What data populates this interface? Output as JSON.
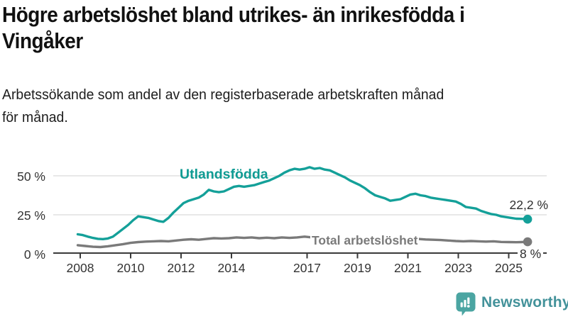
{
  "header": {
    "title_line1": "Högre arbetslöshet bland utrikes- än inrikesfödda i",
    "title_line2": "Vingåker",
    "subtitle_line1": "Arbetssökande som andel av den registerbaserade arbetskraften månad",
    "subtitle_line2": "för månad."
  },
  "chart_data": {
    "type": "line",
    "title": "Högre arbetslöshet bland utrikes- än inrikesfödda i Vingåker",
    "subtitle": "Arbetssökande som andel av den registerbaserade arbetskraften månad för månad.",
    "x_unit": "decimal year (monthly readings)",
    "x_range": [
      2007.9,
      2025.75
    ],
    "ylim": [
      0,
      60
    ],
    "grid": "horizontal gridlines at 25 and 50, dark baseline at 0",
    "legend_position": "inline labels on lines",
    "x_ticks": [
      2008,
      2010,
      2012,
      2014,
      2017,
      2019,
      2021,
      2023,
      2025
    ],
    "y_ticks": [
      {
        "value": 0,
        "label": "0 %"
      },
      {
        "value": 25,
        "label": "25 %"
      },
      {
        "value": 50,
        "label": "50 %"
      }
    ],
    "series": [
      {
        "name": "Utlandsfödda",
        "color": "#14a099",
        "end_label": "22,2 %",
        "end_value": 22.2,
        "points": [
          [
            2007.9,
            12.5
          ],
          [
            2008.1,
            12.0
          ],
          [
            2008.3,
            11.0
          ],
          [
            2008.5,
            10.2
          ],
          [
            2008.7,
            9.6
          ],
          [
            2008.9,
            9.4
          ],
          [
            2009.1,
            9.8
          ],
          [
            2009.3,
            11.0
          ],
          [
            2009.5,
            13.5
          ],
          [
            2009.7,
            16.0
          ],
          [
            2009.9,
            18.5
          ],
          [
            2010.1,
            21.5
          ],
          [
            2010.3,
            24.0
          ],
          [
            2010.5,
            23.5
          ],
          [
            2010.7,
            23.0
          ],
          [
            2010.9,
            22.0
          ],
          [
            2011.1,
            21.0
          ],
          [
            2011.3,
            20.5
          ],
          [
            2011.5,
            23.0
          ],
          [
            2011.7,
            26.5
          ],
          [
            2011.9,
            29.5
          ],
          [
            2012.1,
            32.5
          ],
          [
            2012.3,
            34.0
          ],
          [
            2012.5,
            35.0
          ],
          [
            2012.7,
            36.0
          ],
          [
            2012.9,
            38.0
          ],
          [
            2013.1,
            41.0
          ],
          [
            2013.3,
            40.0
          ],
          [
            2013.5,
            39.5
          ],
          [
            2013.7,
            40.0
          ],
          [
            2013.9,
            41.5
          ],
          [
            2014.1,
            43.0
          ],
          [
            2014.3,
            43.5
          ],
          [
            2014.5,
            43.0
          ],
          [
            2014.7,
            43.5
          ],
          [
            2014.9,
            44.0
          ],
          [
            2015.1,
            45.0
          ],
          [
            2015.3,
            46.0
          ],
          [
            2015.5,
            47.0
          ],
          [
            2015.7,
            48.5
          ],
          [
            2015.9,
            50.0
          ],
          [
            2016.1,
            52.0
          ],
          [
            2016.3,
            53.5
          ],
          [
            2016.5,
            54.5
          ],
          [
            2016.7,
            54.0
          ],
          [
            2016.9,
            54.5
          ],
          [
            2017.1,
            55.5
          ],
          [
            2017.3,
            54.5
          ],
          [
            2017.5,
            55.0
          ],
          [
            2017.7,
            54.0
          ],
          [
            2017.9,
            53.5
          ],
          [
            2018.1,
            52.0
          ],
          [
            2018.3,
            50.5
          ],
          [
            2018.5,
            49.0
          ],
          [
            2018.7,
            47.0
          ],
          [
            2018.9,
            45.5
          ],
          [
            2019.1,
            44.0
          ],
          [
            2019.3,
            42.0
          ],
          [
            2019.5,
            39.5
          ],
          [
            2019.7,
            37.5
          ],
          [
            2019.9,
            36.5
          ],
          [
            2020.1,
            35.5
          ],
          [
            2020.3,
            34.0
          ],
          [
            2020.5,
            34.5
          ],
          [
            2020.7,
            35.0
          ],
          [
            2020.9,
            36.5
          ],
          [
            2021.1,
            38.0
          ],
          [
            2021.3,
            38.5
          ],
          [
            2021.5,
            37.5
          ],
          [
            2021.7,
            37.0
          ],
          [
            2021.9,
            36.0
          ],
          [
            2022.1,
            35.5
          ],
          [
            2022.3,
            35.0
          ],
          [
            2022.5,
            34.5
          ],
          [
            2022.7,
            34.0
          ],
          [
            2022.9,
            33.5
          ],
          [
            2023.1,
            32.0
          ],
          [
            2023.3,
            30.0
          ],
          [
            2023.5,
            29.5
          ],
          [
            2023.7,
            29.0
          ],
          [
            2023.9,
            27.5
          ],
          [
            2024.1,
            26.5
          ],
          [
            2024.3,
            25.5
          ],
          [
            2024.5,
            25.0
          ],
          [
            2024.7,
            24.0
          ],
          [
            2024.9,
            23.5
          ],
          [
            2025.1,
            23.0
          ],
          [
            2025.3,
            22.5
          ],
          [
            2025.5,
            22.4
          ],
          [
            2025.75,
            22.2
          ]
        ]
      },
      {
        "name": "Total arbetslöshet",
        "color": "#7a7a7a",
        "end_label": "8 %",
        "end_value": 8,
        "points": [
          [
            2007.9,
            5.5
          ],
          [
            2008.2,
            5.0
          ],
          [
            2008.5,
            4.5
          ],
          [
            2008.8,
            4.3
          ],
          [
            2009.1,
            4.8
          ],
          [
            2009.4,
            5.5
          ],
          [
            2009.7,
            6.2
          ],
          [
            2010.0,
            7.0
          ],
          [
            2010.3,
            7.5
          ],
          [
            2010.6,
            7.8
          ],
          [
            2010.9,
            8.0
          ],
          [
            2011.2,
            8.2
          ],
          [
            2011.5,
            8.0
          ],
          [
            2011.8,
            8.5
          ],
          [
            2012.1,
            9.0
          ],
          [
            2012.4,
            9.3
          ],
          [
            2012.7,
            9.0
          ],
          [
            2013.0,
            9.5
          ],
          [
            2013.3,
            10.0
          ],
          [
            2013.6,
            9.8
          ],
          [
            2013.9,
            10.0
          ],
          [
            2014.2,
            10.5
          ],
          [
            2014.5,
            10.2
          ],
          [
            2014.8,
            10.5
          ],
          [
            2015.1,
            10.0
          ],
          [
            2015.4,
            10.3
          ],
          [
            2015.7,
            10.0
          ],
          [
            2016.0,
            10.5
          ],
          [
            2016.3,
            10.2
          ],
          [
            2016.6,
            10.5
          ],
          [
            2016.9,
            11.0
          ],
          [
            2017.2,
            10.5
          ],
          [
            2017.5,
            10.8
          ],
          [
            2017.8,
            10.2
          ],
          [
            2018.1,
            10.0
          ],
          [
            2018.4,
            9.8
          ],
          [
            2018.7,
            9.5
          ],
          [
            2019.0,
            9.5
          ],
          [
            2019.3,
            9.2
          ],
          [
            2019.6,
            9.0
          ],
          [
            2019.9,
            9.5
          ],
          [
            2020.2,
            10.0
          ],
          [
            2020.5,
            10.3
          ],
          [
            2020.8,
            10.0
          ],
          [
            2021.1,
            9.8
          ],
          [
            2021.4,
            9.5
          ],
          [
            2021.7,
            9.2
          ],
          [
            2022.0,
            9.0
          ],
          [
            2022.3,
            8.8
          ],
          [
            2022.6,
            8.5
          ],
          [
            2022.9,
            8.2
          ],
          [
            2023.2,
            8.0
          ],
          [
            2023.5,
            8.2
          ],
          [
            2023.8,
            8.0
          ],
          [
            2024.1,
            7.8
          ],
          [
            2024.4,
            8.0
          ],
          [
            2024.7,
            7.6
          ],
          [
            2025.0,
            7.5
          ],
          [
            2025.3,
            7.4
          ],
          [
            2025.5,
            7.5
          ],
          [
            2025.75,
            7.7
          ]
        ]
      }
    ]
  },
  "colors": {
    "accent_teal": "#14a099",
    "series_gray": "#7a7a7a",
    "gridline": "#d9d9d9",
    "axis": "#3a3a3a",
    "text_dark": "#111111",
    "logo_icon": "#4ba5a2",
    "logo_text": "#43929a"
  },
  "footer": {
    "brand": "Newsworthy"
  }
}
